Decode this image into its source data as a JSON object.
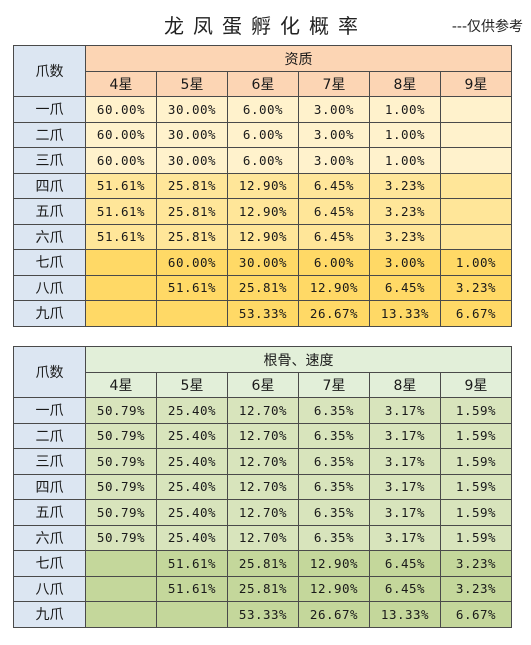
{
  "title": "龙凤蛋孵化概率",
  "note": "---仅供参考",
  "colors": {
    "row_header": "#dce6f2",
    "table1_header": "#fcd5b4",
    "table1_light": "#fff2cc",
    "table1_mid": "#ffe699",
    "table1_dark": "#ffd966",
    "table2_header": "#e2efd9",
    "table2_light": "#ebf1de",
    "table2_mid": "#d8e4bc",
    "table2_dark": "#c4d79b"
  },
  "table1": {
    "corner": "爪数",
    "group": "资质",
    "stars": [
      "4星",
      "5星",
      "6星",
      "7星",
      "8星",
      "9星"
    ],
    "rows": [
      {
        "label": "一爪",
        "values": [
          "60.00%",
          "30.00%",
          "6.00%",
          "3.00%",
          "1.00%",
          ""
        ]
      },
      {
        "label": "二爪",
        "values": [
          "60.00%",
          "30.00%",
          "6.00%",
          "3.00%",
          "1.00%",
          ""
        ]
      },
      {
        "label": "三爪",
        "values": [
          "60.00%",
          "30.00%",
          "6.00%",
          "3.00%",
          "1.00%",
          ""
        ]
      },
      {
        "label": "四爪",
        "values": [
          "51.61%",
          "25.81%",
          "12.90%",
          "6.45%",
          "3.23%",
          ""
        ]
      },
      {
        "label": "五爪",
        "values": [
          "51.61%",
          "25.81%",
          "12.90%",
          "6.45%",
          "3.23%",
          ""
        ]
      },
      {
        "label": "六爪",
        "values": [
          "51.61%",
          "25.81%",
          "12.90%",
          "6.45%",
          "3.23%",
          ""
        ]
      },
      {
        "label": "七爪",
        "values": [
          "",
          "60.00%",
          "30.00%",
          "6.00%",
          "3.00%",
          "1.00%"
        ]
      },
      {
        "label": "八爪",
        "values": [
          "",
          "51.61%",
          "25.81%",
          "12.90%",
          "6.45%",
          "3.23%"
        ]
      },
      {
        "label": "九爪",
        "values": [
          "",
          "",
          "53.33%",
          "26.67%",
          "13.33%",
          "6.67%"
        ]
      }
    ]
  },
  "table2": {
    "corner": "爪数",
    "group": "根骨、速度",
    "stars": [
      "4星",
      "5星",
      "6星",
      "7星",
      "8星",
      "9星"
    ],
    "rows": [
      {
        "label": "一爪",
        "values": [
          "50.79%",
          "25.40%",
          "12.70%",
          "6.35%",
          "3.17%",
          "1.59%"
        ]
      },
      {
        "label": "二爪",
        "values": [
          "50.79%",
          "25.40%",
          "12.70%",
          "6.35%",
          "3.17%",
          "1.59%"
        ]
      },
      {
        "label": "三爪",
        "values": [
          "50.79%",
          "25.40%",
          "12.70%",
          "6.35%",
          "3.17%",
          "1.59%"
        ]
      },
      {
        "label": "四爪",
        "values": [
          "50.79%",
          "25.40%",
          "12.70%",
          "6.35%",
          "3.17%",
          "1.59%"
        ]
      },
      {
        "label": "五爪",
        "values": [
          "50.79%",
          "25.40%",
          "12.70%",
          "6.35%",
          "3.17%",
          "1.59%"
        ]
      },
      {
        "label": "六爪",
        "values": [
          "50.79%",
          "25.40%",
          "12.70%",
          "6.35%",
          "3.17%",
          "1.59%"
        ]
      },
      {
        "label": "七爪",
        "values": [
          "",
          "51.61%",
          "25.81%",
          "12.90%",
          "6.45%",
          "3.23%"
        ]
      },
      {
        "label": "八爪",
        "values": [
          "",
          "51.61%",
          "25.81%",
          "12.90%",
          "6.45%",
          "3.23%"
        ]
      },
      {
        "label": "九爪",
        "values": [
          "",
          "",
          "53.33%",
          "26.67%",
          "13.33%",
          "6.67%"
        ]
      }
    ]
  }
}
